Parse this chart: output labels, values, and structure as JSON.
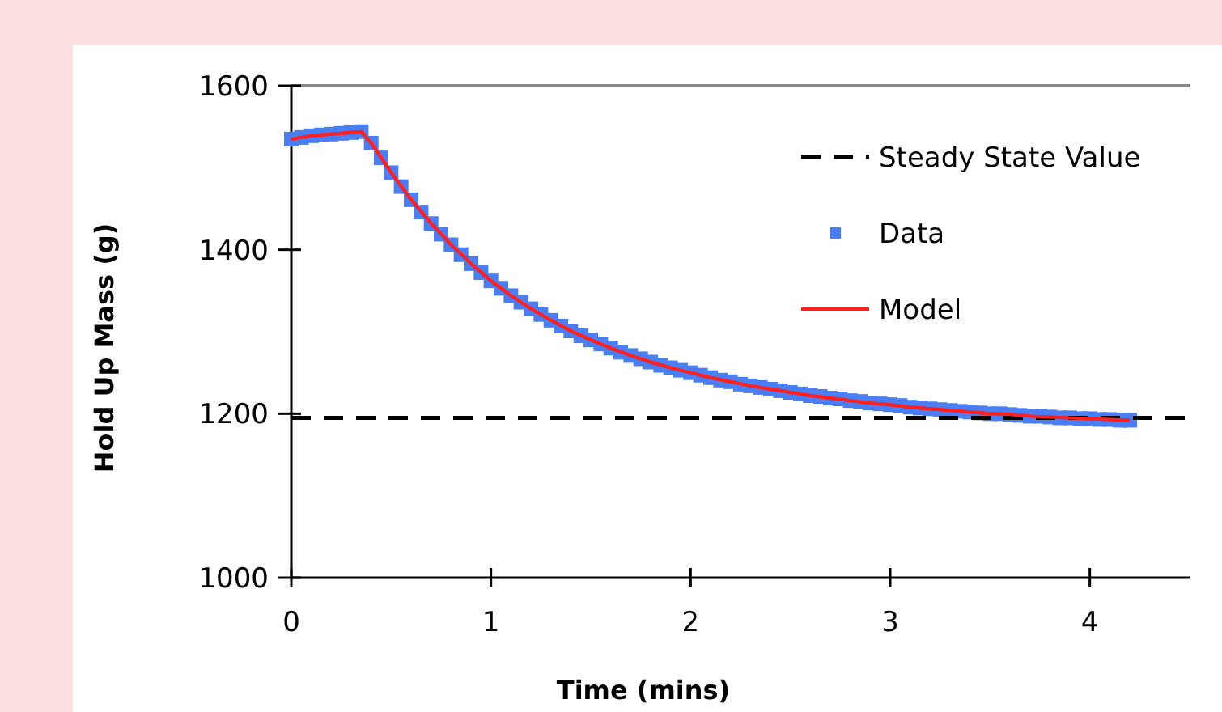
{
  "chart_data": {
    "type": "scatter",
    "xlabel": "Time (mins)",
    "ylabel": "Hold Up Mass (g)",
    "xlim": [
      0,
      4.5
    ],
    "ylim": [
      1000,
      1600
    ],
    "xticks": [
      0,
      1,
      2,
      3,
      4
    ],
    "yticks": [
      1000,
      1200,
      1400,
      1600
    ],
    "grid": false,
    "legend": "top right",
    "ref_lines": [
      {
        "axis": "y",
        "value": 1195,
        "label": "Steady State Value",
        "color": "#000000",
        "line_style": "dashed"
      }
    ],
    "series": [
      {
        "name": "Data",
        "marker": "square",
        "color": "#4a7ef5",
        "x": [
          0,
          0.05,
          0.1,
          0.15,
          0.2,
          0.25,
          0.3,
          0.35,
          0.4,
          0.45,
          0.5,
          0.55,
          0.6,
          0.65,
          0.7,
          0.75,
          0.8,
          0.85,
          0.9,
          0.95,
          1.0,
          1.05,
          1.1,
          1.15,
          1.2,
          1.25,
          1.3,
          1.35,
          1.4,
          1.45,
          1.5,
          1.55,
          1.6,
          1.65,
          1.7,
          1.75,
          1.8,
          1.85,
          1.9,
          1.95,
          2.0,
          2.05,
          2.1,
          2.15,
          2.2,
          2.25,
          2.3,
          2.35,
          2.4,
          2.45,
          2.5,
          2.55,
          2.6,
          2.65,
          2.7,
          2.75,
          2.8,
          2.85,
          2.9,
          2.95,
          3.0,
          3.05,
          3.1,
          3.15,
          3.2,
          3.25,
          3.3,
          3.35,
          3.4,
          3.45,
          3.5,
          3.55,
          3.6,
          3.65,
          3.7,
          3.75,
          3.8,
          3.85,
          3.9,
          3.95,
          4.0,
          4.05,
          4.1,
          4.15,
          4.2
        ],
        "values": [
          1535,
          1537,
          1539,
          1540,
          1541,
          1542,
          1543,
          1544,
          1530,
          1512,
          1494,
          1477,
          1461,
          1446,
          1432,
          1419,
          1406,
          1394,
          1383,
          1372,
          1362,
          1353,
          1344,
          1336,
          1328,
          1321,
          1314,
          1307,
          1301,
          1295,
          1290,
          1285,
          1280,
          1275,
          1271,
          1267,
          1263,
          1259,
          1256,
          1253,
          1250,
          1247,
          1244,
          1241,
          1239,
          1236,
          1234,
          1232,
          1230,
          1228,
          1226,
          1224,
          1222,
          1221,
          1219,
          1218,
          1216,
          1215,
          1213,
          1212,
          1211,
          1210,
          1208,
          1207,
          1206,
          1205,
          1204,
          1203,
          1202,
          1201,
          1200,
          1200,
          1199,
          1198,
          1197,
          1197,
          1196,
          1195,
          1195,
          1194,
          1194,
          1193,
          1193,
          1192,
          1192
        ]
      },
      {
        "name": "Model",
        "type": "line",
        "marker": "none",
        "color": "#ff2020",
        "x": [
          0,
          0.1,
          0.2,
          0.3,
          0.35,
          0.4,
          0.5,
          0.6,
          0.7,
          0.8,
          0.9,
          1.0,
          1.1,
          1.2,
          1.3,
          1.4,
          1.5,
          1.6,
          1.7,
          1.8,
          1.9,
          2.0,
          2.1,
          2.2,
          2.3,
          2.4,
          2.5,
          2.6,
          2.7,
          2.8,
          2.9,
          3.0,
          3.1,
          3.2,
          3.3,
          3.4,
          3.5,
          3.6,
          3.7,
          3.8,
          3.9,
          4.0,
          4.1,
          4.2
        ],
        "values": [
          1535,
          1539,
          1541,
          1543,
          1544,
          1530,
          1494,
          1461,
          1432,
          1406,
          1383,
          1362,
          1344,
          1328,
          1314,
          1301,
          1290,
          1280,
          1271,
          1263,
          1256,
          1250,
          1244,
          1239,
          1234,
          1230,
          1226,
          1222,
          1219,
          1216,
          1213,
          1211,
          1208,
          1206,
          1204,
          1202,
          1200,
          1199,
          1197,
          1196,
          1195,
          1194,
          1193,
          1192
        ]
      }
    ]
  }
}
